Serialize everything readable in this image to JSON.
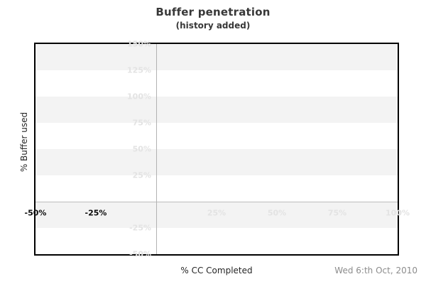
{
  "footer": {
    "date": "Wed 6:th Oct, 2010"
  },
  "chart_data": {
    "type": "scatter",
    "title": "Buffer penetration",
    "subtitle": "(history added)",
    "xlabel": "% CC Completed",
    "ylabel": "% Buffer used",
    "xlim": [
      -50,
      100
    ],
    "ylim": [
      -50,
      150
    ],
    "x_tick_values": [
      -50,
      -25,
      25,
      50,
      75,
      100
    ],
    "x_tick_labels": [
      "-50%",
      "-25%",
      "25%",
      "50%",
      "75%",
      "100%"
    ],
    "x_tick_emphasized": [
      true,
      true,
      false,
      false,
      false,
      false
    ],
    "y_tick_values": [
      150,
      125,
      100,
      75,
      50,
      25,
      -25,
      -50
    ],
    "y_tick_labels": [
      "150%",
      "125%",
      "100%",
      "75%",
      "50%",
      "25%",
      "-25%",
      "-50%"
    ],
    "series": [],
    "grid": "alternating-horizontal-bands",
    "zero_crosshair": true,
    "legend_position": "none",
    "colors": {
      "band": "#f3f3f3",
      "zero_line_horizontal": "#bcbcbc",
      "zero_line_vertical": "#b2b2b2",
      "tick_faint": "#e3e3e3",
      "tick_dark": "#0a0a0a",
      "plot_border": "#000000",
      "title": "#383838",
      "axis_title": "#262626",
      "date": "#8c8c8c"
    }
  }
}
